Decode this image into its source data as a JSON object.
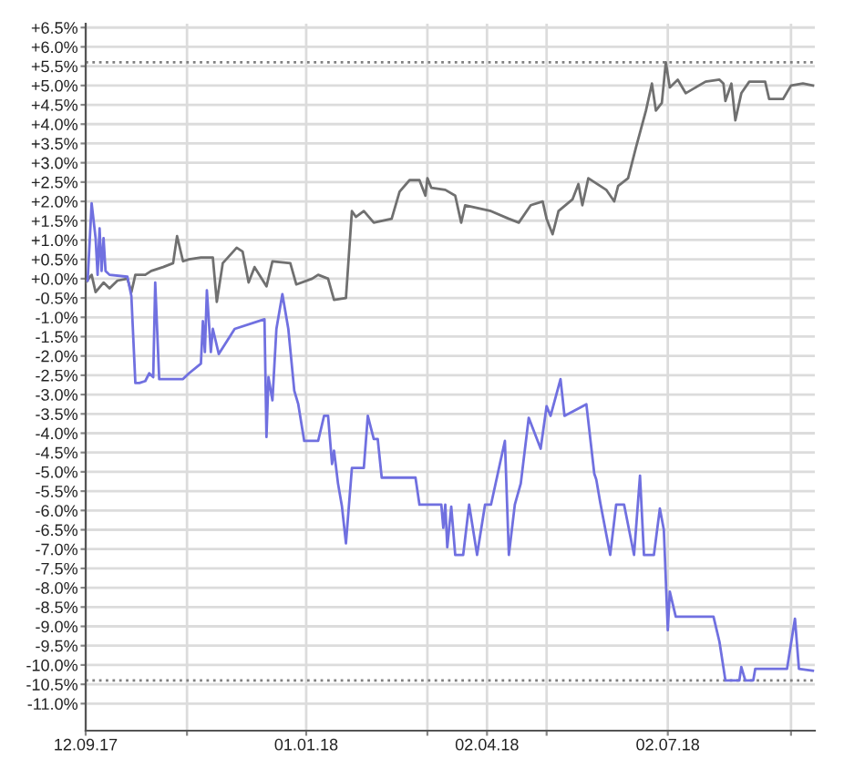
{
  "chart_data": {
    "type": "line",
    "grid": true,
    "marker": "none",
    "line_style": "solid",
    "legend": false,
    "xlim": [
      "2017-09-12",
      "2018-09-14"
    ],
    "ylim": [
      -11.7,
      6.6
    ],
    "xticks": [
      {
        "value": "2017-09-12",
        "label": "12.09.17"
      },
      {
        "value": "2017-11-02",
        "label": null
      },
      {
        "value": "2018-01-01",
        "label": "01.01.18"
      },
      {
        "value": "2018-03-03",
        "label": null
      },
      {
        "value": "2018-04-02",
        "label": "02.04.18"
      },
      {
        "value": "2018-05-02",
        "label": null
      },
      {
        "value": "2018-07-02",
        "label": "02.07.18"
      },
      {
        "value": "2018-09-02",
        "label": null
      }
    ],
    "yticks": [
      {
        "value": 6.5,
        "label": "+6.5%"
      },
      {
        "value": 6.0,
        "label": "+6.0%"
      },
      {
        "value": 5.5,
        "label": "+5.5%"
      },
      {
        "value": 5.0,
        "label": "+5.0%"
      },
      {
        "value": 4.5,
        "label": "+4.5%"
      },
      {
        "value": 4.0,
        "label": "+4.0%"
      },
      {
        "value": 3.5,
        "label": "+3.5%"
      },
      {
        "value": 3.0,
        "label": "+3.0%"
      },
      {
        "value": 2.5,
        "label": "+2.5%"
      },
      {
        "value": 2.0,
        "label": "+2.0%"
      },
      {
        "value": 1.5,
        "label": "+1.5%"
      },
      {
        "value": 1.0,
        "label": "+1.0%"
      },
      {
        "value": 0.5,
        "label": "+0.5%"
      },
      {
        "value": 0.0,
        "label": "+0.0%"
      },
      {
        "value": -0.5,
        "label": "-0.5%"
      },
      {
        "value": -1.0,
        "label": "-1.0%"
      },
      {
        "value": -1.5,
        "label": "-1.5%"
      },
      {
        "value": -2.0,
        "label": "-2.0%"
      },
      {
        "value": -2.5,
        "label": "-2.5%"
      },
      {
        "value": -3.0,
        "label": "-3.0%"
      },
      {
        "value": -3.5,
        "label": "-3.5%"
      },
      {
        "value": -4.0,
        "label": "-4.0%"
      },
      {
        "value": -4.5,
        "label": "-4.5%"
      },
      {
        "value": -5.0,
        "label": "-5.0%"
      },
      {
        "value": -5.5,
        "label": "-5.5%"
      },
      {
        "value": -6.0,
        "label": "-6.0%"
      },
      {
        "value": -6.5,
        "label": "-6.5%"
      },
      {
        "value": -7.0,
        "label": "-7.0%"
      },
      {
        "value": -7.5,
        "label": "-7.5%"
      },
      {
        "value": -8.0,
        "label": "-8.0%"
      },
      {
        "value": -8.5,
        "label": "-8.5%"
      },
      {
        "value": -9.0,
        "label": "-9.0%"
      },
      {
        "value": -9.5,
        "label": "-9.5%"
      },
      {
        "value": -10.0,
        "label": "-10.0%"
      },
      {
        "value": -10.5,
        "label": "-10.5%"
      },
      {
        "value": -11.0,
        "label": "-11.0%"
      }
    ],
    "ref_lines": [
      {
        "axis": "y",
        "value": 5.6,
        "color": "#808080",
        "line_style": "dotted"
      },
      {
        "axis": "y",
        "value": -10.4,
        "color": "#808080",
        "line_style": "dotted"
      }
    ],
    "series": [
      {
        "color": "#707070",
        "x": [
          "2017-09-12",
          "2017-09-15",
          "2017-09-17",
          "2017-09-21",
          "2017-09-24",
          "2017-09-28",
          "2017-10-03",
          "2017-10-05",
          "2017-10-07",
          "2017-10-12",
          "2017-10-15",
          "2017-10-21",
          "2017-10-26",
          "2017-10-28",
          "2017-10-31",
          "2017-11-03",
          "2017-11-09",
          "2017-11-15",
          "2017-11-17",
          "2017-11-20",
          "2017-11-27",
          "2017-11-30",
          "2017-12-03",
          "2017-12-06",
          "2017-12-12",
          "2017-12-15",
          "2017-12-24",
          "2017-12-27",
          "2018-01-04",
          "2018-01-07",
          "2018-01-12",
          "2018-01-15",
          "2018-01-21",
          "2018-01-24",
          "2018-01-26",
          "2018-01-30",
          "2018-02-04",
          "2018-02-13",
          "2018-02-17",
          "2018-02-22",
          "2018-02-27",
          "2018-03-02",
          "2018-03-03",
          "2018-03-05",
          "2018-03-12",
          "2018-03-17",
          "2018-03-20",
          "2018-03-22",
          "2018-04-04",
          "2018-04-13",
          "2018-04-18",
          "2018-04-24",
          "2018-04-30",
          "2018-05-02",
          "2018-05-05",
          "2018-05-08",
          "2018-05-15",
          "2018-05-18",
          "2018-05-20",
          "2018-05-23",
          "2018-06-01",
          "2018-06-05",
          "2018-06-07",
          "2018-06-12",
          "2018-06-16",
          "2018-06-21",
          "2018-06-24",
          "2018-06-26",
          "2018-06-29",
          "2018-07-01",
          "2018-07-03",
          "2018-07-07",
          "2018-07-11",
          "2018-07-21",
          "2018-07-28",
          "2018-07-30",
          "2018-07-31",
          "2018-08-03",
          "2018-08-05",
          "2018-08-08",
          "2018-08-12",
          "2018-08-20",
          "2018-08-22",
          "2018-08-29",
          "2018-09-02",
          "2018-09-08",
          "2018-09-13"
        ],
        "values": [
          -0.1,
          0.1,
          -0.35,
          -0.1,
          -0.25,
          -0.05,
          0.0,
          -0.35,
          0.1,
          0.1,
          0.2,
          0.3,
          0.4,
          1.1,
          0.45,
          0.5,
          0.55,
          0.55,
          -0.6,
          0.4,
          0.8,
          0.7,
          -0.1,
          0.3,
          -0.2,
          0.45,
          0.4,
          -0.15,
          0.0,
          0.1,
          0.0,
          -0.55,
          -0.5,
          1.75,
          1.6,
          1.75,
          1.45,
          1.55,
          2.25,
          2.55,
          2.55,
          2.15,
          2.6,
          2.35,
          2.3,
          2.15,
          1.45,
          1.9,
          1.75,
          1.55,
          1.45,
          1.9,
          2.0,
          1.55,
          1.15,
          1.75,
          2.05,
          2.45,
          1.9,
          2.6,
          2.3,
          2.0,
          2.4,
          2.6,
          3.4,
          4.35,
          5.05,
          4.35,
          4.55,
          5.6,
          4.95,
          5.15,
          4.8,
          5.1,
          5.15,
          5.05,
          4.6,
          5.05,
          4.1,
          4.8,
          5.1,
          5.1,
          4.65,
          4.65,
          5.0,
          5.05,
          5.0
        ]
      },
      {
        "color": "#7070e0",
        "x": [
          "2017-09-13",
          "2017-09-15",
          "2017-09-17",
          "2017-09-18",
          "2017-09-19",
          "2017-09-20",
          "2017-09-21",
          "2017-09-22",
          "2017-09-24",
          "2017-10-03",
          "2017-10-05",
          "2017-10-07",
          "2017-10-09",
          "2017-10-12",
          "2017-10-14",
          "2017-10-16",
          "2017-10-17",
          "2017-10-19",
          "2017-10-31",
          "2017-11-03",
          "2017-11-09",
          "2017-11-10",
          "2017-11-11",
          "2017-11-12",
          "2017-11-14",
          "2017-11-15",
          "2017-11-18",
          "2017-11-26",
          "2017-12-11",
          "2017-12-12",
          "2017-12-13",
          "2017-12-15",
          "2017-12-17",
          "2017-12-20",
          "2017-12-23",
          "2017-12-26",
          "2017-12-28",
          "2017-12-31",
          "2018-01-07",
          "2018-01-10",
          "2018-01-12",
          "2018-01-14",
          "2018-01-15",
          "2018-01-17",
          "2018-01-19",
          "2018-01-21",
          "2018-01-24",
          "2018-01-30",
          "2018-02-01",
          "2018-02-04",
          "2018-02-06",
          "2018-02-08",
          "2018-02-25",
          "2018-02-27",
          "2018-03-08",
          "2018-03-10",
          "2018-03-11",
          "2018-03-12",
          "2018-03-13",
          "2018-03-15",
          "2018-03-17",
          "2018-03-21",
          "2018-03-24",
          "2018-03-28",
          "2018-04-01",
          "2018-04-04",
          "2018-04-11",
          "2018-04-13",
          "2018-04-16",
          "2018-04-19",
          "2018-04-23",
          "2018-04-29",
          "2018-05-02",
          "2018-05-04",
          "2018-05-09",
          "2018-05-11",
          "2018-05-22",
          "2018-05-26",
          "2018-05-27",
          "2018-05-29",
          "2018-06-03",
          "2018-06-06",
          "2018-06-10",
          "2018-06-15",
          "2018-06-18",
          "2018-06-20",
          "2018-06-25",
          "2018-06-28",
          "2018-06-30",
          "2018-07-02",
          "2018-07-03",
          "2018-07-06",
          "2018-07-25",
          "2018-07-28",
          "2018-07-31",
          "2018-08-07",
          "2018-08-08",
          "2018-08-10",
          "2018-08-14",
          "2018-08-15",
          "2018-08-31",
          "2018-09-04",
          "2018-09-06",
          "2018-09-13"
        ],
        "values": [
          -0.05,
          1.95,
          1.05,
          0.1,
          1.3,
          0.2,
          1.05,
          0.2,
          0.1,
          0.05,
          -0.45,
          -2.7,
          -2.7,
          -2.65,
          -2.45,
          -2.55,
          -0.1,
          -2.6,
          -2.6,
          -2.45,
          -2.2,
          -1.1,
          -1.9,
          -0.3,
          -1.9,
          -1.3,
          -1.95,
          -1.3,
          -1.05,
          -4.1,
          -2.55,
          -3.15,
          -1.3,
          -0.4,
          -1.3,
          -2.9,
          -3.25,
          -4.2,
          -4.2,
          -3.55,
          -3.55,
          -4.8,
          -4.45,
          -5.3,
          -5.9,
          -6.85,
          -4.9,
          -4.9,
          -3.55,
          -4.15,
          -4.15,
          -5.15,
          -5.15,
          -5.85,
          -5.85,
          -5.85,
          -6.45,
          -5.85,
          -6.95,
          -5.9,
          -7.15,
          -7.15,
          -5.85,
          -7.15,
          -5.85,
          -5.85,
          -4.2,
          -7.15,
          -5.85,
          -5.3,
          -3.6,
          -4.4,
          -3.3,
          -3.55,
          -2.6,
          -3.55,
          -3.25,
          -5.05,
          -5.2,
          -5.8,
          -7.15,
          -5.85,
          -5.85,
          -7.15,
          -5.1,
          -7.15,
          -7.15,
          -5.95,
          -6.5,
          -9.1,
          -8.1,
          -8.75,
          -8.75,
          -9.4,
          -10.4,
          -10.4,
          -10.05,
          -10.4,
          -10.4,
          -10.1,
          -10.1,
          -8.8,
          -10.1,
          -10.15
        ]
      }
    ]
  }
}
